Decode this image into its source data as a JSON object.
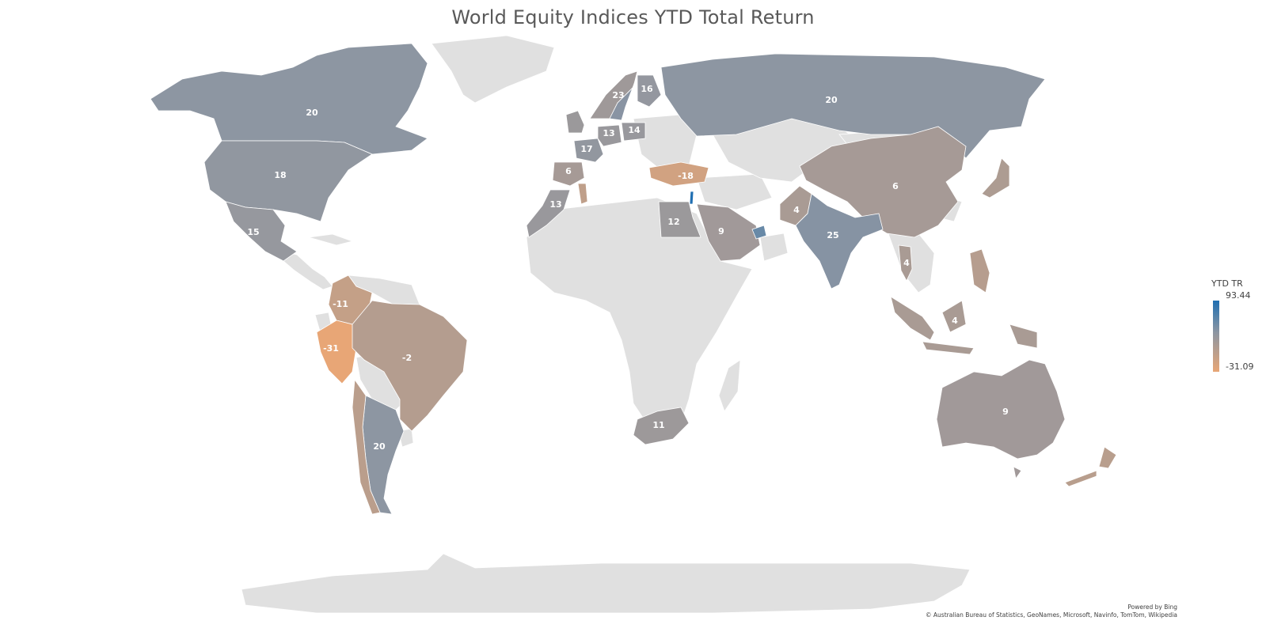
{
  "title": "World Equity Indices YTD Total Return",
  "legend": {
    "title": "YTD TR",
    "max_label": "93.44",
    "min_label": "-31.09",
    "max_value": 93.44,
    "min_value": -31.09,
    "color_high": "#1f6fb2",
    "color_mid": "#8d96a2",
    "color_low": "#e8a676",
    "no_data_color": "#e0e0e0"
  },
  "attribution": {
    "powered_by": "Powered by Bing",
    "sources": "© Australian Bureau of Statistics, GeoNames, Microsoft, Navinfo, TomTom, Wikipedia"
  },
  "regions": [
    {
      "id": "canada",
      "label": "20",
      "value": 20
    },
    {
      "id": "usa",
      "label": "18",
      "value": 18
    },
    {
      "id": "mexico",
      "label": "15",
      "value": 15
    },
    {
      "id": "colombia",
      "label": "-11",
      "value": -11
    },
    {
      "id": "peru",
      "label": "-31",
      "value": -31
    },
    {
      "id": "brazil",
      "label": "-2",
      "value": -2
    },
    {
      "id": "argentina",
      "label": "20",
      "value": 20
    },
    {
      "id": "chile",
      "label": "",
      "value": -5
    },
    {
      "id": "sweden",
      "label": "23",
      "value": 23
    },
    {
      "id": "finland",
      "label": "16",
      "value": 16
    },
    {
      "id": "norway",
      "label": "",
      "value": 10
    },
    {
      "id": "uk",
      "label": "",
      "value": 12
    },
    {
      "id": "germany",
      "label": "13",
      "value": 13
    },
    {
      "id": "poland",
      "label": "14",
      "value": 14
    },
    {
      "id": "france",
      "label": "17",
      "value": 17
    },
    {
      "id": "spain",
      "label": "6",
      "value": 6
    },
    {
      "id": "turkey",
      "label": "-18",
      "value": -18
    },
    {
      "id": "morocco",
      "label": "13",
      "value": 13
    },
    {
      "id": "tunisia",
      "label": "",
      "value": -8
    },
    {
      "id": "egypt",
      "label": "12",
      "value": 12
    },
    {
      "id": "saudi",
      "label": "9",
      "value": 9
    },
    {
      "id": "uae",
      "label": "",
      "value": 45
    },
    {
      "id": "israel",
      "label": "",
      "value": 93
    },
    {
      "id": "russia",
      "label": "20",
      "value": 20
    },
    {
      "id": "china",
      "label": "6",
      "value": 6
    },
    {
      "id": "pakistan",
      "label": "4",
      "value": 4
    },
    {
      "id": "india",
      "label": "25",
      "value": 25
    },
    {
      "id": "thailand",
      "label": "4",
      "value": 4
    },
    {
      "id": "japan",
      "label": "",
      "value": 2
    },
    {
      "id": "indonesia",
      "label": "4",
      "value": 4
    },
    {
      "id": "philippines",
      "label": "",
      "value": -3
    },
    {
      "id": "south_africa",
      "label": "11",
      "value": 11
    },
    {
      "id": "australia",
      "label": "9",
      "value": 9
    },
    {
      "id": "new_zealand",
      "label": "",
      "value": -4
    }
  ]
}
